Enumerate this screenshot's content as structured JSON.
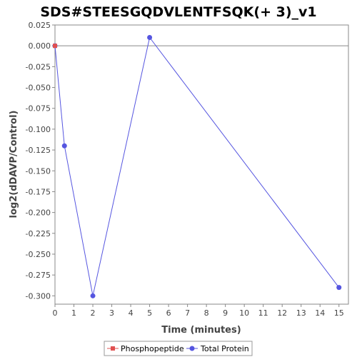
{
  "chart_data": {
    "type": "line",
    "title": "SDS#STEESGQDVLENTFSQK(+ 3)_v1",
    "xlabel": "Time (minutes)",
    "ylabel": "log2(dDAVP/Control)",
    "xlim": [
      0,
      15.5
    ],
    "ylim": [
      -0.31,
      0.025
    ],
    "x_ticks": [
      0,
      1,
      2,
      3,
      4,
      5,
      6,
      7,
      8,
      9,
      10,
      11,
      12,
      13,
      14,
      15
    ],
    "y_ticks": [
      0.025,
      0.0,
      -0.025,
      -0.05,
      -0.075,
      -0.1,
      -0.125,
      -0.15,
      -0.175,
      -0.2,
      -0.225,
      -0.25,
      -0.275,
      -0.3
    ],
    "x_tick_labels": [
      "0",
      "1",
      "2",
      "3",
      "4",
      "5",
      "6",
      "7",
      "8",
      "9",
      "10",
      "11",
      "12",
      "13",
      "14",
      "15"
    ],
    "y_tick_labels": [
      "0.025",
      "0.000",
      "-0.025",
      "-0.050",
      "-0.075",
      "-0.100",
      "-0.125",
      "-0.150",
      "-0.175",
      "-0.200",
      "-0.225",
      "-0.250",
      "-0.275",
      "-0.300"
    ],
    "zero_line": true,
    "grid": false,
    "legend_position": "bottom",
    "series": [
      {
        "name": "Phosphopeptide",
        "color": "#e05050",
        "marker": "square",
        "points": [
          {
            "x": 0,
            "y": 0.0
          }
        ]
      },
      {
        "name": "Total Protein",
        "color": "#5555e0",
        "marker": "circle",
        "points": [
          {
            "x": 0,
            "y": 0.0
          },
          {
            "x": 0.5,
            "y": -0.12
          },
          {
            "x": 2,
            "y": -0.3
          },
          {
            "x": 5,
            "y": 0.01
          },
          {
            "x": 15,
            "y": -0.29
          }
        ]
      }
    ]
  }
}
